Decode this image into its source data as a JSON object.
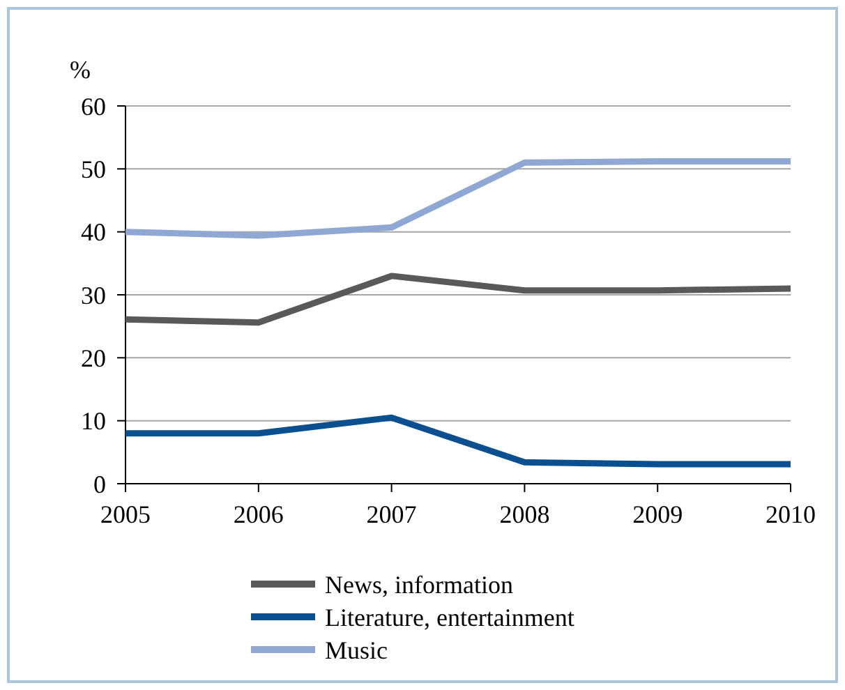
{
  "chart_data": {
    "type": "line",
    "ylabel": "%",
    "x": [
      2005,
      2006,
      2007,
      2008,
      2009,
      2010
    ],
    "xlim": [
      2005,
      2010
    ],
    "xticks": [
      2005,
      2006,
      2007,
      2008,
      2009,
      2010
    ],
    "ylim": [
      0,
      60
    ],
    "yticks": [
      0,
      10,
      20,
      30,
      40,
      50,
      60
    ],
    "grid": "y",
    "legend": "bottom",
    "marker": "none",
    "line_style": "solid",
    "series": [
      {
        "name": "News, information",
        "color": "#58595b",
        "values": [
          26.1,
          25.6,
          33,
          30.7,
          30.7,
          31
        ]
      },
      {
        "name": "Literature, entertainment",
        "color": "#0a4f8f",
        "values": [
          8,
          8,
          10.5,
          3.4,
          3.1,
          3.1
        ]
      },
      {
        "name": "Music",
        "color": "#8fa8d3",
        "values": [
          40,
          39.4,
          40.7,
          51,
          51.2,
          51.2
        ]
      }
    ]
  }
}
